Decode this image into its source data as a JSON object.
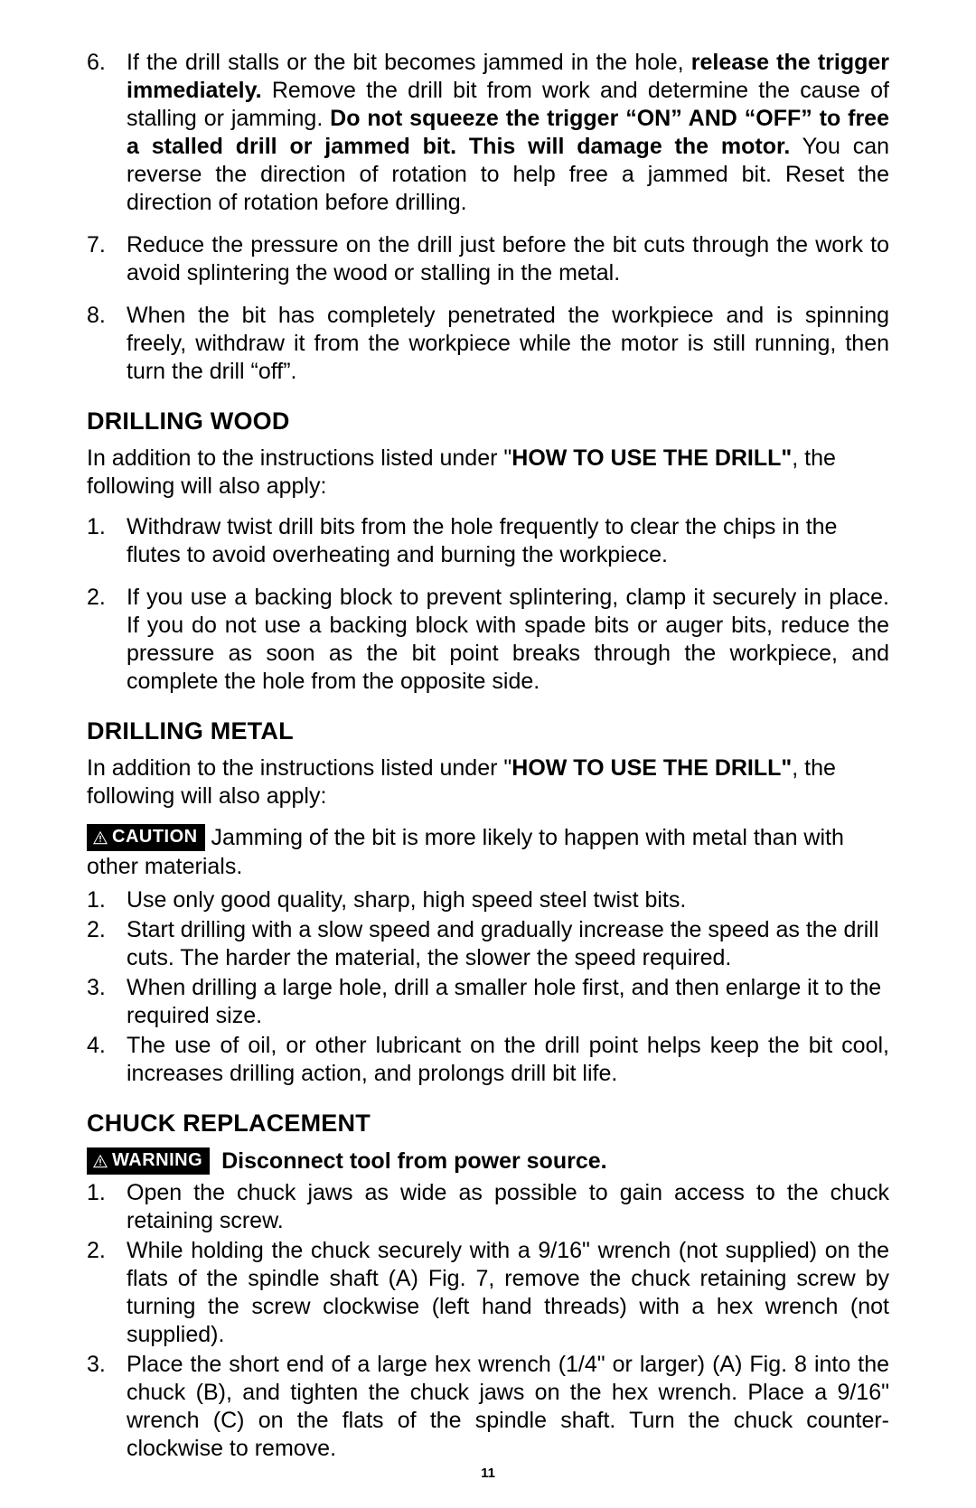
{
  "page_number": "11",
  "list_top": [
    {
      "num": "6.",
      "segments": [
        {
          "t": "If the drill stalls or the bit becomes jammed in the hole, ",
          "b": false
        },
        {
          "t": "release the trigger immediately.",
          "b": true
        },
        {
          "t": " Remove the drill bit from work and determine the cause of stalling or jamming. ",
          "b": false
        },
        {
          "t": "Do not squeeze the trigger “ON” AND “OFF” to free a stalled drill or jammed bit. This will damage the motor.",
          "b": true
        },
        {
          "t": " You can reverse the direction of rotation to help free a jammed bit. Reset the direction of rotation before drilling.",
          "b": false
        }
      ]
    },
    {
      "num": "7.",
      "segments": [
        {
          "t": "Reduce the pressure on the drill just before the bit cuts through the work to avoid splintering the wood or stalling in the metal.",
          "b": false
        }
      ]
    },
    {
      "num": "8.",
      "segments": [
        {
          "t": "When the bit has completely penetrated the workpiece and is spinning freely, withdraw it from the workpiece while the motor is still running, then turn the drill “off”.",
          "b": false
        }
      ]
    }
  ],
  "wood": {
    "heading": "DRILLING WOOD",
    "intro_pre": "In addition to the instructions listed under \"",
    "intro_bold": "HOW TO USE THE DRILL\"",
    "intro_post": ", the following will also apply:",
    "items": [
      {
        "num": "1.",
        "text": "Withdraw twist drill bits from the hole frequently to clear the chips in the flutes to avoid overheating and burning the workpiece.",
        "justify": false
      },
      {
        "num": "2.",
        "text": "If you use a backing block to prevent splintering, clamp it securely in place. If you do not use a backing block with spade bits or auger bits, reduce the pressure as soon as the bit point breaks through the workpiece, and complete the hole from the opposite side.",
        "justify": true
      }
    ]
  },
  "metal": {
    "heading": "DRILLING METAL",
    "intro_pre": "In addition to the instructions listed under \"",
    "intro_bold": "HOW TO USE THE DRILL\"",
    "intro_post": ", the following will also apply:",
    "caution_label": "CAUTION",
    "caution_text": " Jamming of the bit is more likely to happen with metal than with other materials.",
    "items": [
      {
        "num": "1.",
        "text": "Use only good quality, sharp, high speed steel twist bits.",
        "justify": false
      },
      {
        "num": "2.",
        "text": "Start drilling with a slow speed and gradually increase the speed as the drill cuts. The harder the material, the slower the speed required.",
        "justify": false
      },
      {
        "num": "3.",
        "text": "When drilling a large hole, drill a smaller hole first, and then enlarge it to the required size.",
        "justify": false
      },
      {
        "num": "4.",
        "text": "The use of oil, or other lubricant on the drill point helps keep the bit cool, increases drilling action, and prolongs drill bit life.",
        "justify": true
      }
    ]
  },
  "chuck": {
    "heading": "CHUCK REPLACEMENT",
    "warning_label": "WARNING",
    "warning_text": "Disconnect tool from power source.",
    "items": [
      {
        "num": "1.",
        "text": "Open the chuck jaws as wide as possible to gain access to the chuck retaining screw.",
        "justify": true
      },
      {
        "num": "2.",
        "text": "While holding the chuck securely with a 9/16\" wrench (not supplied) on the flats of the spindle shaft (A) Fig. 7, remove the chuck retaining screw by turning the screw clockwise (left hand threads) with a hex wrench (not supplied).",
        "justify": true
      },
      {
        "num": "3.",
        "text": "Place the short end of a large hex wrench (1/4\" or larger) (A) Fig. 8 into the chuck (B), and tighten the chuck jaws on the hex wrench. Place a 9/16\" wrench (C) on the flats of the spindle shaft. Turn the chuck counter-clockwise to remove.",
        "justify": true
      }
    ]
  }
}
